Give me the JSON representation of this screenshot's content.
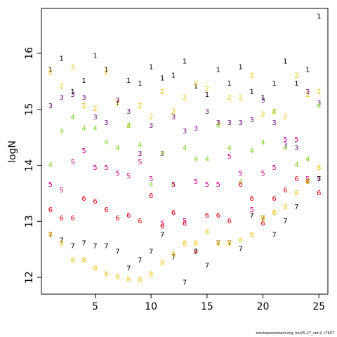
{
  "chart_data": {
    "type": "scatter",
    "ylabel": "logN",
    "xlabel": "",
    "xlim": [
      0.2,
      25.8
    ],
    "ylim": [
      11.7,
      16.8
    ],
    "xticks": [
      5,
      10,
      15,
      20,
      25
    ],
    "yticks": [
      12,
      13,
      14,
      15,
      16
    ],
    "grid": false,
    "marker": "series-number-glyph",
    "series": [
      {
        "label": "1",
        "color": "#000000",
        "points": [
          [
            1,
            15.7
          ],
          [
            2,
            15.9
          ],
          [
            3,
            15.3
          ],
          [
            4,
            15.5
          ],
          [
            5,
            15.95
          ],
          [
            6,
            15.7
          ],
          [
            7,
            15.1
          ],
          [
            8,
            15.5
          ],
          [
            9,
            15.45
          ],
          [
            10,
            15.75
          ],
          [
            11,
            15.55
          ],
          [
            12,
            15.6
          ],
          [
            13,
            15.85
          ],
          [
            14,
            15.4
          ],
          [
            15,
            15.25
          ],
          [
            16,
            15.7
          ],
          [
            17,
            15.45
          ],
          [
            18,
            15.75
          ],
          [
            19,
            15.3
          ],
          [
            20,
            15.2
          ],
          [
            21,
            15.45
          ],
          [
            22,
            15.85
          ],
          [
            23,
            15.45
          ],
          [
            24,
            15.7
          ],
          [
            25,
            16.65
          ]
        ]
      },
      {
        "label": "2",
        "color": "#f5c10e",
        "points": [
          [
            1,
            15.65
          ],
          [
            2,
            15.4
          ],
          [
            3,
            15.75
          ],
          [
            4,
            15.05
          ],
          [
            5,
            15.0
          ],
          [
            6,
            15.65
          ],
          [
            7,
            15.1
          ],
          [
            8,
            14.7
          ],
          [
            9,
            15.05
          ],
          [
            10,
            14.85
          ],
          [
            11,
            15.3
          ],
          [
            12,
            14.95
          ],
          [
            13,
            15.2
          ],
          [
            14,
            15.45
          ],
          [
            15,
            15.35
          ],
          [
            16,
            14.75
          ],
          [
            17,
            15.2
          ],
          [
            18,
            15.2
          ],
          [
            19,
            15.6
          ],
          [
            20,
            14.9
          ],
          [
            21,
            14.95
          ],
          [
            22,
            14.85
          ],
          [
            23,
            15.6
          ],
          [
            24,
            15.25
          ],
          [
            25,
            15.3
          ]
        ]
      },
      {
        "label": "3",
        "color": "#7a0c8c",
        "points": [
          [
            1,
            15.05
          ],
          [
            2,
            15.2
          ],
          [
            3,
            15.25
          ],
          [
            4,
            15.2
          ],
          [
            5,
            14.85
          ],
          [
            6,
            14.75
          ],
          [
            7,
            15.15
          ],
          [
            8,
            14.95
          ],
          [
            9,
            14.2
          ],
          [
            10,
            14.7
          ],
          [
            11,
            14.2
          ],
          [
            12,
            14.85
          ],
          [
            13,
            14.6
          ],
          [
            14,
            14.65
          ],
          [
            15,
            14.95
          ],
          [
            16,
            14.75
          ],
          [
            17,
            14.75
          ],
          [
            18,
            14.75
          ],
          [
            19,
            14.8
          ],
          [
            20,
            15.15
          ],
          [
            21,
            14.75
          ],
          [
            22,
            14.35
          ],
          [
            23,
            14.3
          ],
          [
            24,
            15.3
          ],
          [
            25,
            15.1
          ]
        ]
      },
      {
        "label": "4",
        "color": "#7ed321",
        "points": [
          [
            1,
            14.0
          ],
          [
            2,
            14.6
          ],
          [
            3,
            14.85
          ],
          [
            4,
            14.65
          ],
          [
            5,
            14.65
          ],
          [
            6,
            14.4
          ],
          [
            7,
            14.3
          ],
          [
            8,
            14.7
          ],
          [
            9,
            14.35
          ],
          [
            10,
            13.65
          ],
          [
            11,
            14.2
          ],
          [
            12,
            13.65
          ],
          [
            13,
            14.3
          ],
          [
            14,
            14.1
          ],
          [
            15,
            14.1
          ],
          [
            16,
            14.7
          ],
          [
            17,
            14.3
          ],
          [
            18,
            13.7
          ],
          [
            19,
            14.25
          ],
          [
            20,
            14.4
          ],
          [
            21,
            14.95
          ],
          [
            22,
            14.3
          ],
          [
            23,
            14.0
          ],
          [
            24,
            14.1
          ],
          [
            25,
            15.05
          ]
        ]
      },
      {
        "label": "5",
        "color": "#d6008f",
        "points": [
          [
            1,
            13.65
          ],
          [
            2,
            13.55
          ],
          [
            3,
            14.05
          ],
          [
            4,
            14.25
          ],
          [
            5,
            13.95
          ],
          [
            6,
            13.95
          ],
          [
            7,
            13.85
          ],
          [
            8,
            13.8
          ],
          [
            9,
            14.05
          ],
          [
            10,
            13.75
          ],
          [
            11,
            12.95
          ],
          [
            12,
            13.65
          ],
          [
            13,
            13.0
          ],
          [
            14,
            13.7
          ],
          [
            15,
            13.65
          ],
          [
            16,
            13.65
          ],
          [
            17,
            14.15
          ],
          [
            18,
            13.85
          ],
          [
            19,
            13.2
          ],
          [
            20,
            13.85
          ],
          [
            21,
            13.95
          ],
          [
            22,
            14.45
          ],
          [
            23,
            14.45
          ],
          [
            24,
            13.75
          ],
          [
            25,
            13.75
          ]
        ]
      },
      {
        "label": "6",
        "color": "#e0000b",
        "points": [
          [
            1,
            13.2
          ],
          [
            2,
            13.05
          ],
          [
            3,
            13.05
          ],
          [
            4,
            13.4
          ],
          [
            5,
            13.35
          ],
          [
            6,
            13.2
          ],
          [
            7,
            13.05
          ],
          [
            8,
            13.1
          ],
          [
            9,
            13.0
          ],
          [
            10,
            13.45
          ],
          [
            11,
            12.9
          ],
          [
            12,
            13.15
          ],
          [
            13,
            12.95
          ],
          [
            14,
            12.45
          ],
          [
            15,
            13.1
          ],
          [
            16,
            13.1
          ],
          [
            17,
            13.0
          ],
          [
            18,
            13.65
          ],
          [
            19,
            13.4
          ],
          [
            20,
            12.95
          ],
          [
            21,
            13.4
          ],
          [
            22,
            13.55
          ],
          [
            23,
            13.75
          ],
          [
            24,
            13.7
          ],
          [
            25,
            13.5
          ]
        ]
      },
      {
        "label": "7",
        "color": "#000000",
        "points": [
          [
            1,
            12.75
          ],
          [
            2,
            12.65
          ],
          [
            3,
            12.55
          ],
          [
            4,
            12.6
          ],
          [
            5,
            12.55
          ],
          [
            6,
            12.55
          ],
          [
            7,
            12.45
          ],
          [
            8,
            12.15
          ],
          [
            9,
            12.3
          ],
          [
            10,
            12.45
          ],
          [
            11,
            12.75
          ],
          [
            12,
            12.35
          ],
          [
            13,
            11.9
          ],
          [
            14,
            12.45
          ],
          [
            15,
            12.2
          ],
          [
            16,
            12.6
          ],
          [
            17,
            12.6
          ],
          [
            18,
            12.5
          ],
          [
            19,
            13.1
          ],
          [
            20,
            13.05
          ],
          [
            21,
            12.75
          ],
          [
            22,
            13.0
          ],
          [
            23,
            13.25
          ],
          [
            24,
            13.7
          ],
          [
            25,
            13.75
          ]
        ]
      },
      {
        "label": "8",
        "color": "#f5c10e",
        "points": [
          [
            1,
            12.75
          ],
          [
            2,
            12.6
          ],
          [
            3,
            12.3
          ],
          [
            4,
            12.3
          ],
          [
            5,
            12.15
          ],
          [
            6,
            12.05
          ],
          [
            7,
            12.0
          ],
          [
            8,
            11.95
          ],
          [
            9,
            11.95
          ],
          [
            10,
            12.05
          ],
          [
            11,
            12.25
          ],
          [
            12,
            12.4
          ],
          [
            13,
            12.6
          ],
          [
            14,
            12.6
          ],
          [
            15,
            12.8
          ],
          [
            16,
            12.6
          ],
          [
            17,
            12.6
          ],
          [
            18,
            12.65
          ],
          [
            19,
            12.75
          ],
          [
            20,
            13.05
          ],
          [
            21,
            13.15
          ],
          [
            22,
            13.25
          ],
          [
            23,
            13.5
          ],
          [
            24,
            13.7
          ],
          [
            25,
            13.95
          ]
        ]
      }
    ]
  },
  "footer": {
    "text": "stockassessment.org, her25-27_ver.2, r7607"
  }
}
